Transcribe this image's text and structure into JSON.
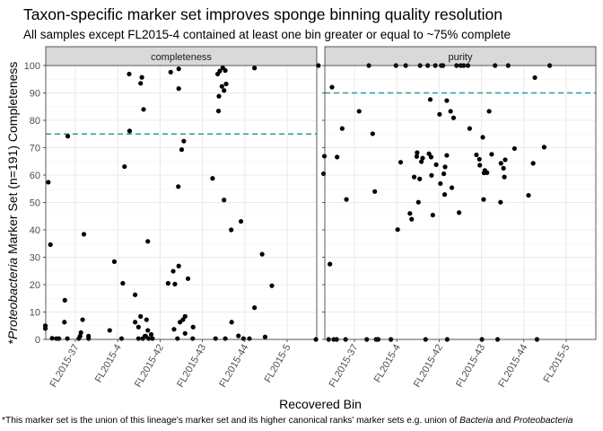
{
  "chart_data": {
    "type": "scatter",
    "title": "Taxon-specific marker set improves sponge binning quality resolution",
    "subtitle": "All samples except FL2015-4 contained at least one bin greater or equal to ~75% complete",
    "xlabel": "Recovered Bin",
    "ylabel": {
      "prefix": "*",
      "italic": "Proteobacteria",
      "suffix": " Marker Set (n=191) Completeness"
    },
    "caption": {
      "part1": "*This marker set is the union of this lineage's marker set and its higher canonical ranks' marker sets e.g. union of ",
      "italic1": "Bacteria",
      "part2": " and ",
      "italic2": "Proteobacteria"
    },
    "categories": [
      "FL2015-37",
      "FL2015-4",
      "FL2015-42",
      "FL2015-43",
      "FL2015-44",
      "FL2015-5"
    ],
    "ylim": [
      0,
      100
    ],
    "yticks": [
      0,
      10,
      20,
      30,
      40,
      50,
      60,
      70,
      80,
      90,
      100
    ],
    "grid": true,
    "point_color": "#000000",
    "reference_line_color": "#2a9d9d",
    "facets": [
      {
        "label": "completeness",
        "reference_line": 75,
        "points": [
          [
            0.36,
            57.4
          ],
          [
            0.41,
            34.6
          ],
          [
            0.29,
            5.0
          ],
          [
            0.29,
            4.0
          ],
          [
            0.45,
            0.4
          ],
          [
            0.55,
            0.3
          ],
          [
            0.61,
            0.3
          ],
          [
            0.74,
            6.3
          ],
          [
            0.75,
            14.3
          ],
          [
            0.82,
            74.2
          ],
          [
            0.81,
            0.3
          ],
          [
            1.08,
            0.3
          ],
          [
            1.11,
            1.2
          ],
          [
            1.13,
            2.5
          ],
          [
            1.17,
            7.2
          ],
          [
            1.2,
            38.4
          ],
          [
            1.31,
            0.3
          ],
          [
            1.31,
            1.2
          ],
          [
            1.81,
            3.3
          ],
          [
            1.92,
            28.4
          ],
          [
            2.12,
            20.5
          ],
          [
            2.16,
            63.1
          ],
          [
            2.09,
            0.3
          ],
          [
            2.27,
            96.9
          ],
          [
            2.28,
            76.1
          ],
          [
            2.41,
            6.3
          ],
          [
            2.41,
            16.3
          ],
          [
            2.49,
            4.5
          ],
          [
            2.49,
            0.3
          ],
          [
            2.54,
            93.5
          ],
          [
            2.54,
            8.4
          ],
          [
            2.57,
            95.7
          ],
          [
            2.61,
            84.0
          ],
          [
            2.59,
            0.3
          ],
          [
            2.64,
            1.2
          ],
          [
            2.66,
            1.2
          ],
          [
            2.68,
            7.2
          ],
          [
            2.71,
            3.3
          ],
          [
            2.71,
            35.8
          ],
          [
            2.73,
            0.3
          ],
          [
            2.79,
            1.8
          ],
          [
            2.82,
            0.3
          ],
          [
            3.19,
            20.5
          ],
          [
            3.25,
            97.6
          ],
          [
            3.31,
            24.9
          ],
          [
            3.33,
            3.7
          ],
          [
            3.35,
            20.2
          ],
          [
            3.41,
            0.3
          ],
          [
            3.44,
            98.8
          ],
          [
            3.44,
            91.6
          ],
          [
            3.43,
            55.8
          ],
          [
            3.44,
            26.8
          ],
          [
            3.47,
            6.3
          ],
          [
            3.51,
            69.3
          ],
          [
            3.54,
            7.2
          ],
          [
            3.56,
            72.4
          ],
          [
            3.59,
            8.4
          ],
          [
            3.59,
            2.2
          ],
          [
            3.66,
            22.2
          ],
          [
            3.78,
            4.5
          ],
          [
            3.77,
            0.3
          ],
          [
            4.24,
            58.8
          ],
          [
            4.31,
            0.3
          ],
          [
            4.36,
            96.9
          ],
          [
            4.38,
            83.4
          ],
          [
            4.39,
            88.8
          ],
          [
            4.41,
            98.0
          ],
          [
            4.46,
            92.4
          ],
          [
            4.51,
            90.9
          ],
          [
            4.48,
            99.2
          ],
          [
            4.54,
            98.2
          ],
          [
            4.56,
            93.3
          ],
          [
            4.51,
            50.9
          ],
          [
            4.54,
            0.3
          ],
          [
            4.68,
            40.0
          ],
          [
            4.69,
            6.3
          ],
          [
            4.85,
            1.3
          ],
          [
            4.91,
            43.1
          ],
          [
            4.97,
            0.3
          ],
          [
            5.11,
            0.3
          ],
          [
            5.23,
            99.1
          ],
          [
            5.23,
            11.6
          ],
          [
            5.41,
            31.1
          ],
          [
            5.48,
            0.9
          ],
          [
            5.64,
            19.6
          ]
        ]
      },
      {
        "label": "purity",
        "reference_line": 90,
        "points": [
          [
            0.09,
            0.0
          ],
          [
            0.15,
            100.0
          ],
          [
            0.27,
            60.5
          ],
          [
            0.29,
            66.9
          ],
          [
            0.39,
            0.0
          ],
          [
            0.42,
            27.5
          ],
          [
            0.47,
            92.1
          ],
          [
            0.51,
            0.0
          ],
          [
            0.58,
            0.0
          ],
          [
            0.59,
            66.6
          ],
          [
            0.71,
            77.0
          ],
          [
            0.81,
            51.1
          ],
          [
            0.79,
            0.0
          ],
          [
            1.11,
            83.3
          ],
          [
            1.29,
            0.0
          ],
          [
            1.34,
            100.0
          ],
          [
            1.43,
            75.1
          ],
          [
            1.48,
            54.0
          ],
          [
            1.51,
            0.0
          ],
          [
            1.56,
            0.0
          ],
          [
            1.86,
            0.0
          ],
          [
            1.98,
            100.0
          ],
          [
            2.02,
            40.1
          ],
          [
            2.09,
            64.7
          ],
          [
            2.21,
            100.0
          ],
          [
            2.31,
            46.0
          ],
          [
            2.35,
            43.9
          ],
          [
            2.41,
            59.3
          ],
          [
            2.47,
            66.8
          ],
          [
            2.48,
            68.2
          ],
          [
            2.51,
            50.1
          ],
          [
            2.54,
            58.6
          ],
          [
            2.55,
            100.0
          ],
          [
            2.58,
            64.9
          ],
          [
            2.61,
            66.2
          ],
          [
            2.68,
            0.0
          ],
          [
            2.73,
            100.0
          ],
          [
            2.76,
            67.8
          ],
          [
            2.79,
            87.6
          ],
          [
            2.81,
            66.6
          ],
          [
            2.82,
            59.9
          ],
          [
            2.85,
            45.4
          ],
          [
            2.91,
            100.0
          ],
          [
            2.93,
            63.8
          ],
          [
            3.01,
            82.2
          ],
          [
            3.03,
            56.9
          ],
          [
            3.05,
            100.0
          ],
          [
            3.09,
            100.0
          ],
          [
            3.11,
            60.5
          ],
          [
            3.13,
            52.9
          ],
          [
            3.14,
            63.0
          ],
          [
            3.18,
            87.2
          ],
          [
            3.18,
            67.2
          ],
          [
            3.19,
            0.0
          ],
          [
            3.27,
            83.3
          ],
          [
            3.3,
            55.4
          ],
          [
            3.34,
            80.9
          ],
          [
            3.41,
            100.0
          ],
          [
            3.47,
            46.3
          ],
          [
            3.51,
            100.0
          ],
          [
            3.58,
            100.0
          ],
          [
            3.68,
            100.0
          ],
          [
            3.72,
            77.0
          ],
          [
            3.88,
            67.4
          ],
          [
            3.95,
            65.8
          ],
          [
            3.96,
            63.6
          ],
          [
            4.01,
            0.0
          ],
          [
            4.03,
            73.8
          ],
          [
            4.05,
            51.1
          ],
          [
            4.06,
            60.8
          ],
          [
            4.08,
            61.7
          ],
          [
            4.13,
            60.9
          ],
          [
            4.18,
            83.3
          ],
          [
            4.24,
            67.6
          ],
          [
            4.32,
            100.0
          ],
          [
            4.38,
            0.0
          ],
          [
            4.45,
            50.1
          ],
          [
            4.46,
            64.3
          ],
          [
            4.52,
            62.5
          ],
          [
            4.54,
            59.3
          ],
          [
            4.56,
            65.6
          ],
          [
            4.63,
            100.0
          ],
          [
            4.78,
            69.7
          ],
          [
            5.11,
            52.6
          ],
          [
            5.22,
            64.3
          ],
          [
            5.26,
            95.6
          ],
          [
            5.31,
            0.0
          ],
          [
            5.48,
            70.2
          ],
          [
            5.61,
            100.0
          ]
        ]
      }
    ]
  }
}
